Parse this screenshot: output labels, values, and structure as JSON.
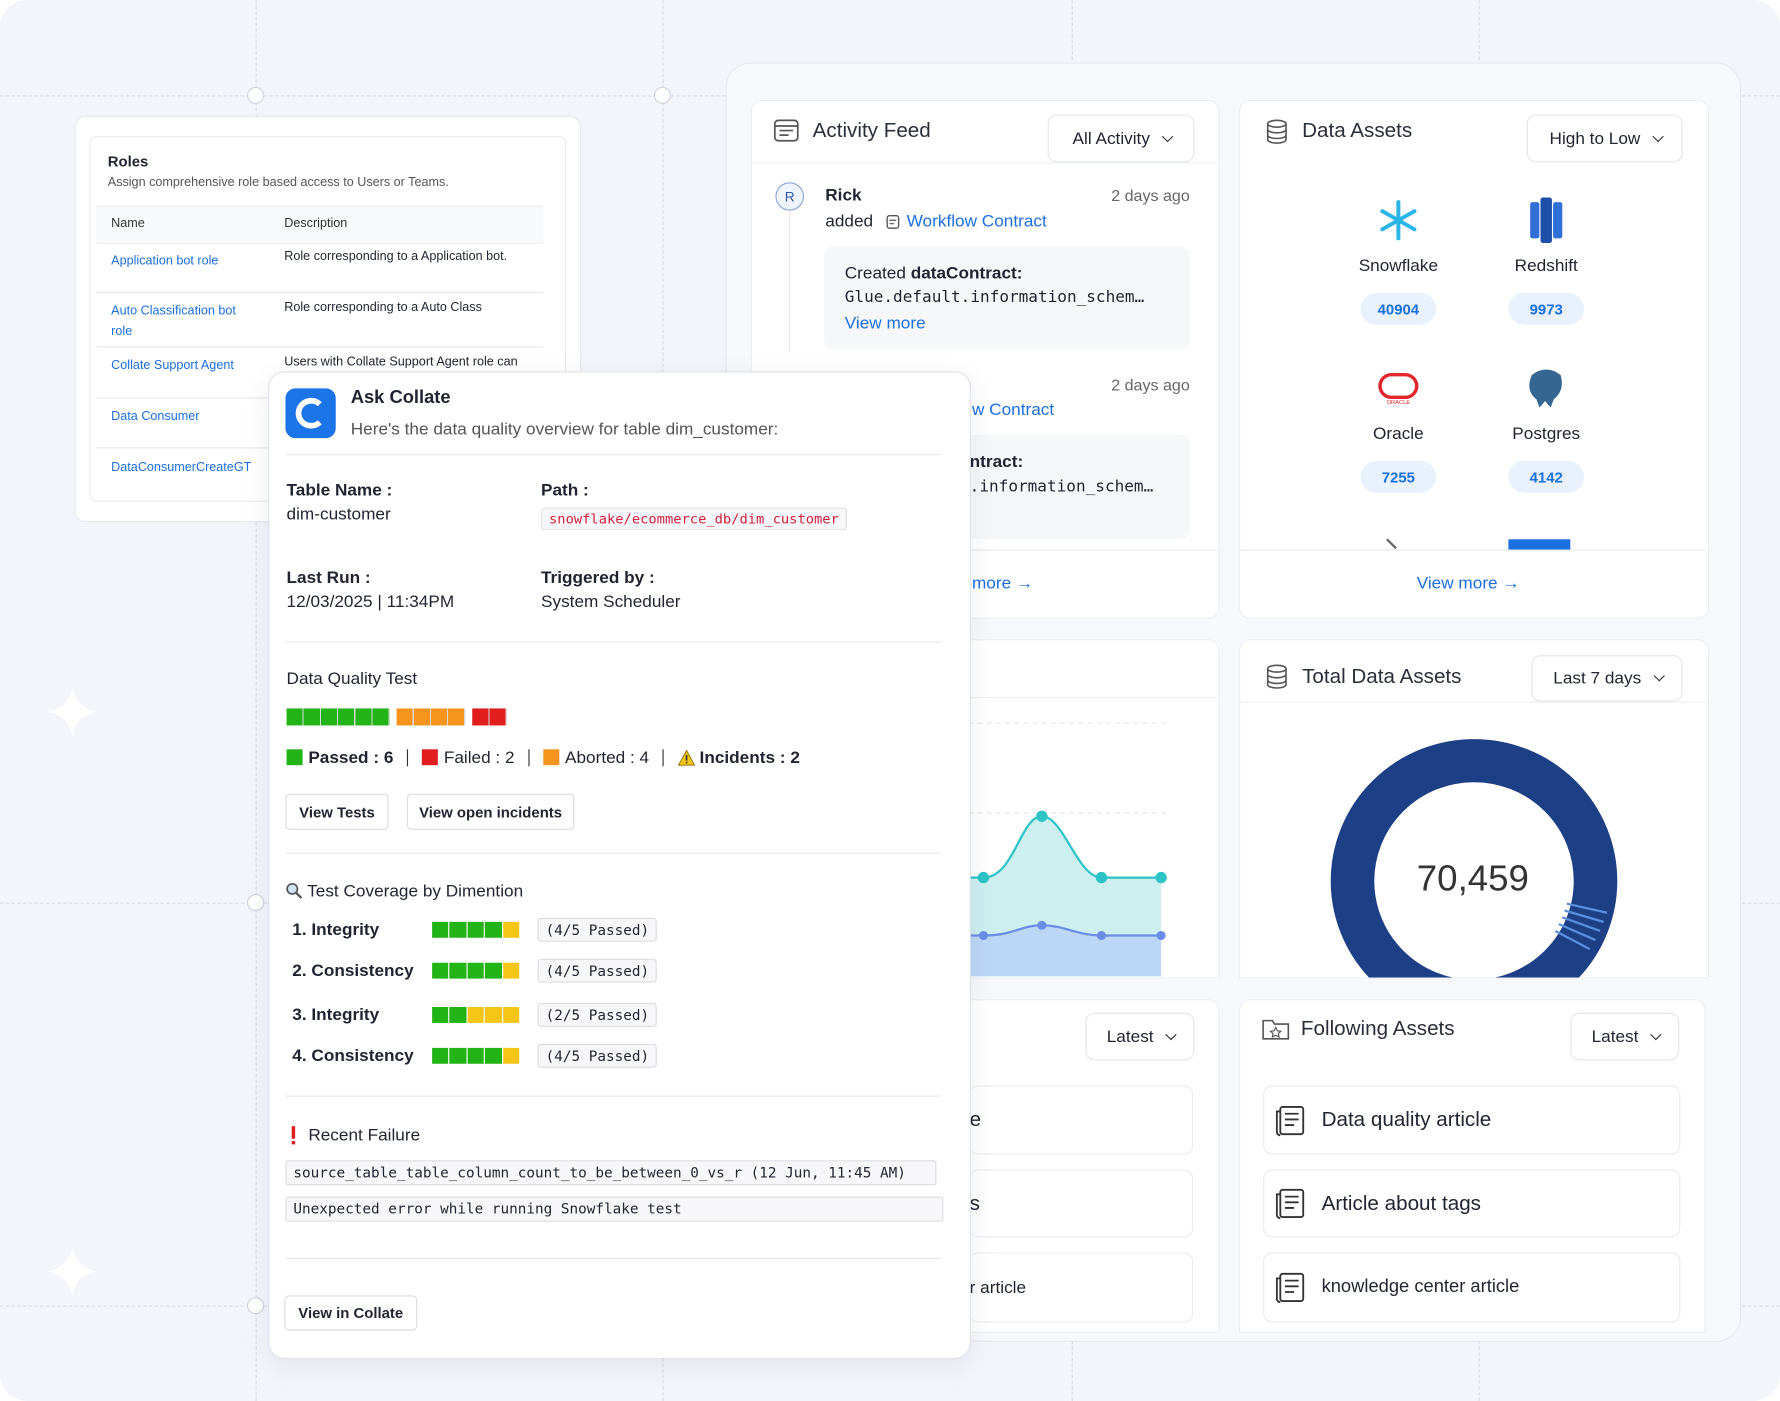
{
  "roles": {
    "title": "Roles",
    "subtitle": "Assign comprehensive role based access to Users or Teams.",
    "columns": [
      "Name",
      "Description"
    ],
    "rows": [
      [
        "Application bot role",
        "Role corresponding to a Application bot."
      ],
      [
        "Auto Classification bot role",
        "Role corresponding to a Auto Class"
      ],
      [
        "Collate Support Agent",
        "Users with Collate Support Agent role can"
      ],
      [
        "Data Consumer"
      ],
      [
        "DataConsumerCreateGT"
      ]
    ]
  },
  "activity_feed": {
    "title": "Activity Feed",
    "filter": "All Activity",
    "items": [
      {
        "user": "Rick",
        "time": "2 days ago",
        "action": "added",
        "entity": "Workflow Contract",
        "detail_prefix": "Created",
        "detail_bold": "dataContract:",
        "code": "Glue.default.information_schem…",
        "link": "View more"
      },
      {
        "time": "2 days ago",
        "entity": "w Contract",
        "detail_bold": "ntract:",
        "code": ".information_schem…"
      }
    ],
    "footer": "more"
  },
  "data_assets": {
    "title": "Data Assets",
    "sort": "High to Low",
    "items": [
      {
        "name": "Snowflake",
        "count": 40904
      },
      {
        "name": "Redshift",
        "count": 9973
      },
      {
        "name": "Oracle",
        "count": 7255
      },
      {
        "name": "Postgres",
        "count": 4142
      }
    ],
    "footer": "View more"
  },
  "total_data_assets": {
    "title": "Total Data Assets",
    "range": "Last 7 days",
    "total": "70,459"
  },
  "partial_card": {
    "filter": "Latest",
    "items": [
      "e",
      "s",
      "r article"
    ]
  },
  "following_assets": {
    "title": "Following Assets",
    "filter": "Latest",
    "items": [
      "Data quality article",
      "Article about tags",
      "knowledge center article"
    ]
  },
  "ask_collate": {
    "title": "Ask Collate",
    "message": "Here's the data quality overview for table dim_customer:",
    "fields": [
      {
        "label": "Table Name :",
        "value": "dim-customer"
      },
      {
        "label": "Path :",
        "value": "snowflake/ecommerce_db/dim_customer"
      },
      {
        "label": "Last Run :",
        "value": "12/03/2025 | 11:34PM"
      },
      {
        "label": "Triggered by :",
        "value": "System Scheduler"
      }
    ],
    "quality": {
      "title": "Data Quality Test",
      "results": [
        {
          "label": "Passed :",
          "value": 6,
          "color": "#22b316"
        },
        {
          "label": "Failed :",
          "value": 2,
          "color": "#e01e1e"
        },
        {
          "label": "Aborted :",
          "value": 4,
          "color": "#f7941d"
        },
        {
          "label": "Incidents :",
          "value": 2
        }
      ]
    },
    "actions": [
      "View Tests",
      "View open incidents"
    ],
    "coverage": {
      "title": "Test Coverage by Dimention",
      "rows": [
        {
          "label": "1. Integrity",
          "passed": 4,
          "total": 5,
          "result": "(4/5 Passed)"
        },
        {
          "label": "2. Consistency",
          "passed": 4,
          "total": 5,
          "result": "(4/5 Passed)"
        },
        {
          "label": "3. Integrity",
          "passed": 2,
          "total": 5,
          "result": "(2/5 Passed)"
        },
        {
          "label": "4. Consistency",
          "passed": 4,
          "total": 5,
          "result": "(4/5 Passed)"
        }
      ]
    },
    "failure": {
      "title": "Recent Failure",
      "lines": [
        "source_table_table_column_count_to_be_between_0_vs_r (12 Jun, 11:45 AM)",
        "Unexpected error while running Snowflake test"
      ]
    },
    "footer_action": "View in Collate"
  }
}
